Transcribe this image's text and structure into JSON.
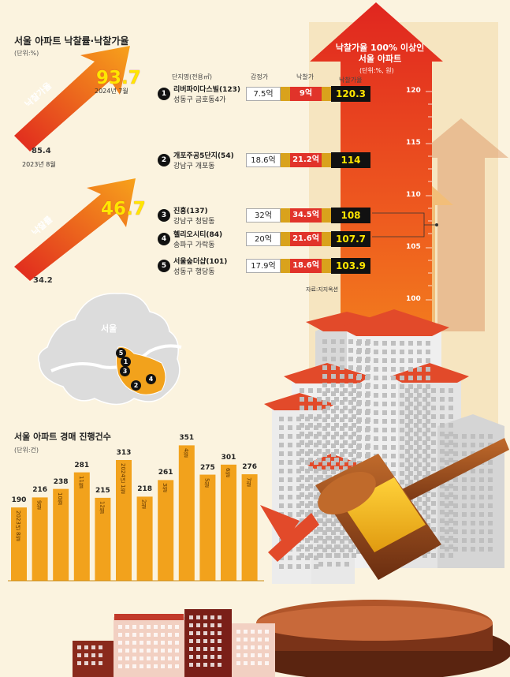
{
  "rate_panel": {
    "title": "서울 아파트 낙찰률·낙찰가율",
    "unit": "(단위:%)",
    "price_ratio_label": "낙찰가율",
    "price_ratio_start": "85.4",
    "price_ratio_start_date": "2023년 8월",
    "price_ratio_end": "93.7",
    "price_ratio_end_date": "2024년 7월",
    "sale_rate_label": "낙찰률",
    "sale_rate_start": "34.2",
    "sale_rate_end": "46.7"
  },
  "table": {
    "title_line1": "낙찰가율 100% 이상인",
    "title_line2": "서울 아파트",
    "unit": "(단위:%, 원)",
    "headers": {
      "complex": "단지명(전용㎡)",
      "appraisal": "감정가",
      "winning": "낙찰가",
      "ratio": "낙찰가율"
    },
    "rows": [
      {
        "no": "1",
        "name": "리버파이다스빌(123)",
        "district": "성동구 금호동4가",
        "appraisal": "7.5억",
        "winning": "9억",
        "ratio": "120.3"
      },
      {
        "no": "2",
        "name": "개포주공5단지(54)",
        "district": "강남구 개포동",
        "appraisal": "18.6억",
        "winning": "21.2억",
        "ratio": "114"
      },
      {
        "no": "3",
        "name": "진흥(137)",
        "district": "강남구 청담동",
        "appraisal": "32억",
        "winning": "34.5억",
        "ratio": "108"
      },
      {
        "no": "4",
        "name": "헬리오시티(84)",
        "district": "송파구 가락동",
        "appraisal": "20억",
        "winning": "21.6억",
        "ratio": "107.7"
      },
      {
        "no": "5",
        "name": "서울숲더샵(101)",
        "district": "성동구 행당동",
        "appraisal": "17.9억",
        "winning": "18.6억",
        "ratio": "103.9"
      }
    ],
    "source": "자료:지지옥션",
    "y_axis_ticks": [
      "120",
      "115",
      "110",
      "105",
      "100"
    ]
  },
  "map": {
    "label": "서울",
    "markers": [
      "5",
      "1",
      "3",
      "2",
      "4"
    ]
  },
  "chart_data": {
    "type": "bar",
    "title": "서울 아파트 경매 진행건수",
    "unit": "(단위:건)",
    "categories": [
      "2023년 8월",
      "9월",
      "10월",
      "11월",
      "12월",
      "2024년 1월",
      "2월",
      "3월",
      "4월",
      "5월",
      "6월",
      "7월"
    ],
    "values": [
      190,
      216,
      238,
      281,
      215,
      313,
      218,
      261,
      351,
      275,
      301,
      276
    ],
    "ylim": [
      0,
      360
    ]
  },
  "colors": {
    "bar": "#f2a21c",
    "red": "#e1332a",
    "bg": "#fbf3df",
    "yellow": "#ffe600"
  }
}
